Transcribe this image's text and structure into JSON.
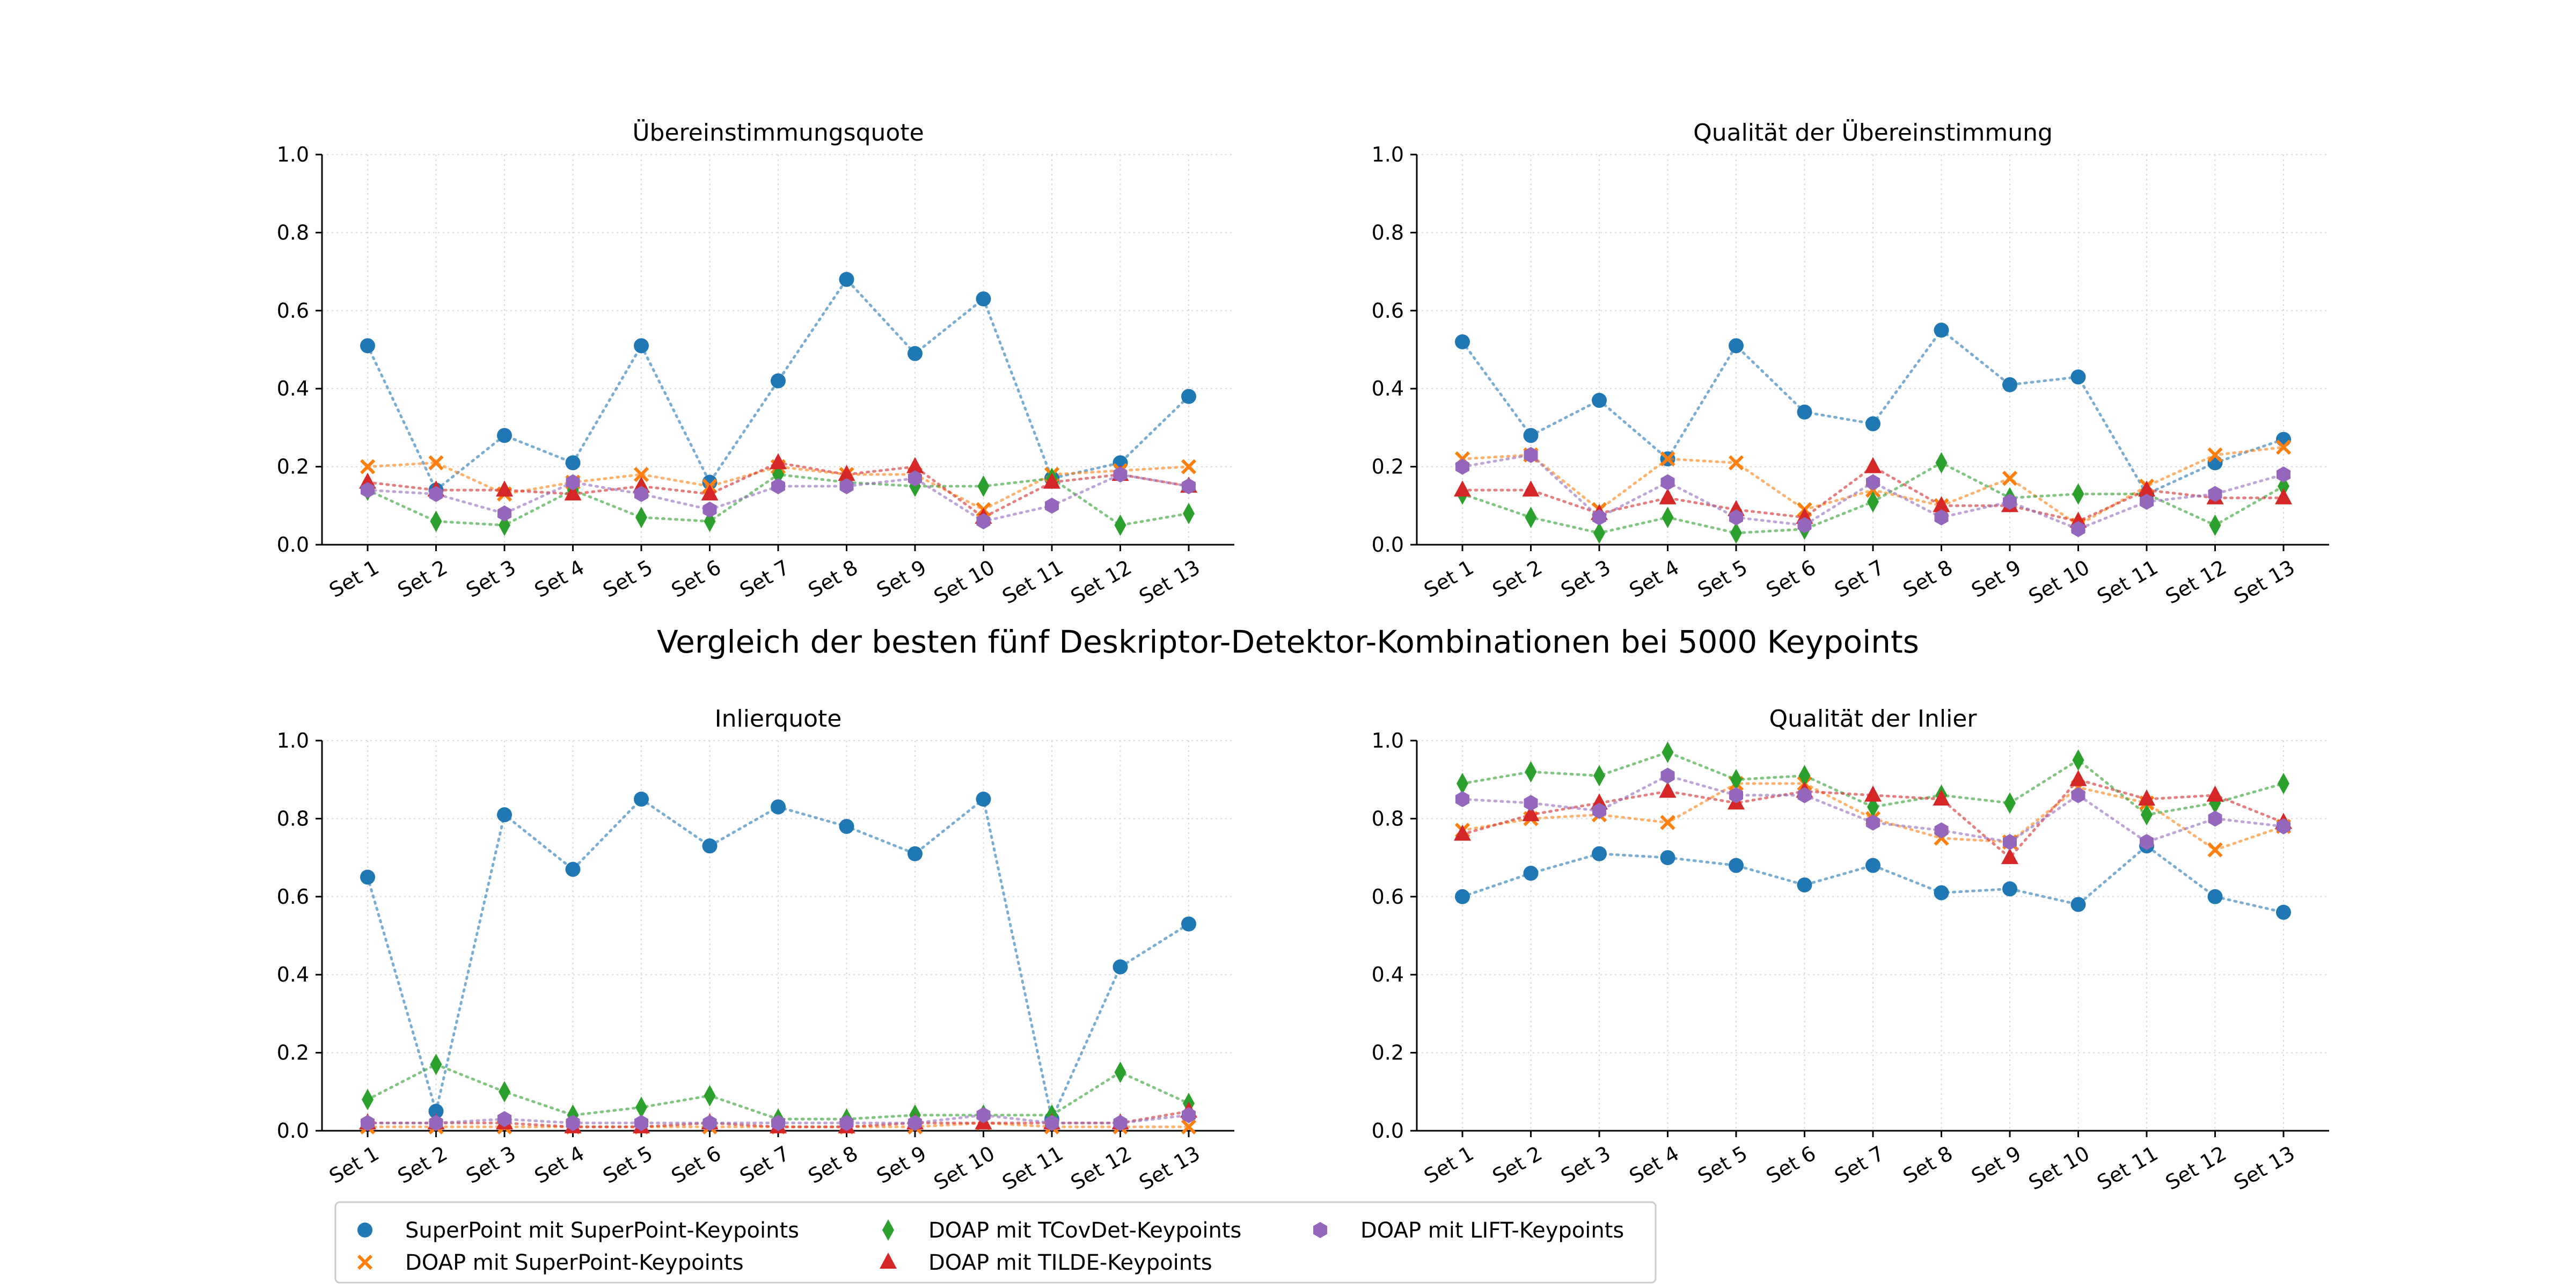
{
  "suptitle": "Vergleich der besten fünf Deskriptor-Detektor-Kombinationen bei 5000 Keypoints",
  "chart_data": [
    {
      "type": "line",
      "title": "Übereinstimmungsquote",
      "xlabel": "",
      "ylabel": "",
      "categories": [
        "Set 1",
        "Set 2",
        "Set 3",
        "Set 4",
        "Set 5",
        "Set 6",
        "Set 7",
        "Set 8",
        "Set 9",
        "Set 10",
        "Set 11",
        "Set 12",
        "Set 13"
      ],
      "ylim": [
        0,
        1
      ],
      "yticks": [
        "0.0",
        "0.2",
        "0.4",
        "0.6",
        "0.8",
        "1.0"
      ],
      "grid": true,
      "series": [
        {
          "name": "SuperPoint mit SuperPoint-Keypoints",
          "values": [
            0.51,
            0.14,
            0.28,
            0.21,
            0.51,
            0.16,
            0.42,
            0.68,
            0.49,
            0.63,
            0.17,
            0.21,
            0.38
          ]
        },
        {
          "name": "DOAP mit SuperPoint-Keypoints",
          "values": [
            0.2,
            0.21,
            0.13,
            0.16,
            0.18,
            0.15,
            0.2,
            0.18,
            0.18,
            0.09,
            0.18,
            0.19,
            0.2
          ]
        },
        {
          "name": "DOAP mit TCovDet-Keypoints",
          "values": [
            0.14,
            0.06,
            0.05,
            0.14,
            0.07,
            0.06,
            0.18,
            0.16,
            0.15,
            0.15,
            0.17,
            0.05,
            0.08
          ]
        },
        {
          "name": "DOAP mit TILDE-Keypoints",
          "values": [
            0.16,
            0.14,
            0.14,
            0.13,
            0.15,
            0.13,
            0.21,
            0.18,
            0.2,
            0.07,
            0.16,
            0.18,
            0.15
          ]
        },
        {
          "name": "DOAP mit LIFT-Keypoints",
          "values": [
            0.14,
            0.13,
            0.08,
            0.16,
            0.13,
            0.09,
            0.15,
            0.15,
            0.17,
            0.06,
            0.1,
            0.18,
            0.15
          ]
        }
      ]
    },
    {
      "type": "line",
      "title": "Qualität der Übereinstimmung",
      "xlabel": "",
      "ylabel": "",
      "categories": [
        "Set 1",
        "Set 2",
        "Set 3",
        "Set 4",
        "Set 5",
        "Set 6",
        "Set 7",
        "Set 8",
        "Set 9",
        "Set 10",
        "Set 11",
        "Set 12",
        "Set 13"
      ],
      "ylim": [
        0,
        1
      ],
      "yticks": [
        "0.0",
        "0.2",
        "0.4",
        "0.6",
        "0.8",
        "1.0"
      ],
      "grid": true,
      "series": [
        {
          "name": "SuperPoint mit SuperPoint-Keypoints",
          "values": [
            0.52,
            0.28,
            0.37,
            0.22,
            0.51,
            0.34,
            0.31,
            0.55,
            0.41,
            0.43,
            0.13,
            0.21,
            0.27
          ]
        },
        {
          "name": "DOAP mit SuperPoint-Keypoints",
          "values": [
            0.22,
            0.23,
            0.09,
            0.22,
            0.21,
            0.09,
            0.14,
            0.1,
            0.17,
            0.05,
            0.15,
            0.23,
            0.25
          ]
        },
        {
          "name": "DOAP mit TCovDet-Keypoints",
          "values": [
            0.13,
            0.07,
            0.03,
            0.07,
            0.03,
            0.04,
            0.11,
            0.21,
            0.12,
            0.13,
            0.13,
            0.05,
            0.15
          ]
        },
        {
          "name": "DOAP mit TILDE-Keypoints",
          "values": [
            0.14,
            0.14,
            0.08,
            0.12,
            0.09,
            0.07,
            0.2,
            0.1,
            0.1,
            0.06,
            0.14,
            0.12,
            0.12
          ]
        },
        {
          "name": "DOAP mit LIFT-Keypoints",
          "values": [
            0.2,
            0.23,
            0.07,
            0.16,
            0.07,
            0.05,
            0.16,
            0.07,
            0.11,
            0.04,
            0.11,
            0.13,
            0.18
          ]
        }
      ]
    },
    {
      "type": "line",
      "title": "Inlierquote",
      "xlabel": "",
      "ylabel": "",
      "categories": [
        "Set 1",
        "Set 2",
        "Set 3",
        "Set 4",
        "Set 5",
        "Set 6",
        "Set 7",
        "Set 8",
        "Set 9",
        "Set 10",
        "Set 11",
        "Set 12",
        "Set 13"
      ],
      "ylim": [
        0,
        1
      ],
      "yticks": [
        "0.0",
        "0.2",
        "0.4",
        "0.6",
        "0.8",
        "1.0"
      ],
      "grid": true,
      "series": [
        {
          "name": "SuperPoint mit SuperPoint-Keypoints",
          "values": [
            0.65,
            0.05,
            0.81,
            0.67,
            0.85,
            0.73,
            0.83,
            0.78,
            0.71,
            0.85,
            0.03,
            0.42,
            0.53
          ]
        },
        {
          "name": "DOAP mit SuperPoint-Keypoints",
          "values": [
            0.01,
            0.01,
            0.01,
            0.01,
            0.01,
            0.01,
            0.01,
            0.01,
            0.01,
            0.02,
            0.01,
            0.01,
            0.01
          ]
        },
        {
          "name": "DOAP mit TCovDet-Keypoints",
          "values": [
            0.08,
            0.17,
            0.1,
            0.04,
            0.06,
            0.09,
            0.03,
            0.03,
            0.04,
            0.04,
            0.04,
            0.15,
            0.07
          ]
        },
        {
          "name": "DOAP mit TILDE-Keypoints",
          "values": [
            0.02,
            0.02,
            0.02,
            0.01,
            0.01,
            0.02,
            0.01,
            0.01,
            0.02,
            0.02,
            0.02,
            0.02,
            0.05
          ]
        },
        {
          "name": "DOAP mit LIFT-Keypoints",
          "values": [
            0.02,
            0.02,
            0.03,
            0.02,
            0.02,
            0.02,
            0.02,
            0.02,
            0.02,
            0.04,
            0.02,
            0.02,
            0.04
          ]
        }
      ]
    },
    {
      "type": "line",
      "title": "Qualität der Inlier",
      "xlabel": "",
      "ylabel": "",
      "categories": [
        "Set 1",
        "Set 2",
        "Set 3",
        "Set 4",
        "Set 5",
        "Set 6",
        "Set 7",
        "Set 8",
        "Set 9",
        "Set 10",
        "Set 11",
        "Set 12",
        "Set 13"
      ],
      "ylim": [
        0,
        1
      ],
      "yticks": [
        "0.0",
        "0.2",
        "0.4",
        "0.6",
        "0.8",
        "1.0"
      ],
      "grid": true,
      "series": [
        {
          "name": "SuperPoint mit SuperPoint-Keypoints",
          "values": [
            0.6,
            0.66,
            0.71,
            0.7,
            0.68,
            0.63,
            0.68,
            0.61,
            0.62,
            0.58,
            0.73,
            0.6,
            0.56
          ]
        },
        {
          "name": "DOAP mit SuperPoint-Keypoints",
          "values": [
            0.77,
            0.8,
            0.81,
            0.79,
            0.89,
            0.89,
            0.8,
            0.75,
            0.74,
            0.88,
            0.84,
            0.72,
            0.78
          ]
        },
        {
          "name": "DOAP mit TCovDet-Keypoints",
          "values": [
            0.89,
            0.92,
            0.91,
            0.97,
            0.9,
            0.91,
            0.83,
            0.86,
            0.84,
            0.95,
            0.81,
            0.84,
            0.89
          ]
        },
        {
          "name": "DOAP mit TILDE-Keypoints",
          "values": [
            0.76,
            0.81,
            0.84,
            0.87,
            0.84,
            0.87,
            0.86,
            0.85,
            0.7,
            0.9,
            0.85,
            0.86,
            0.79
          ]
        },
        {
          "name": "DOAP mit LIFT-Keypoints",
          "values": [
            0.85,
            0.84,
            0.82,
            0.91,
            0.86,
            0.86,
            0.79,
            0.77,
            0.74,
            0.86,
            0.74,
            0.8,
            0.78
          ]
        }
      ]
    }
  ],
  "series_styles": [
    {
      "color": "#1f77b4",
      "marker": "circle"
    },
    {
      "color": "#ff7f0e",
      "marker": "x"
    },
    {
      "color": "#2ca02c",
      "marker": "diamond"
    },
    {
      "color": "#d62728",
      "marker": "triangle"
    },
    {
      "color": "#9467bd",
      "marker": "hexagon"
    }
  ],
  "legend_placement": "bottom-left"
}
